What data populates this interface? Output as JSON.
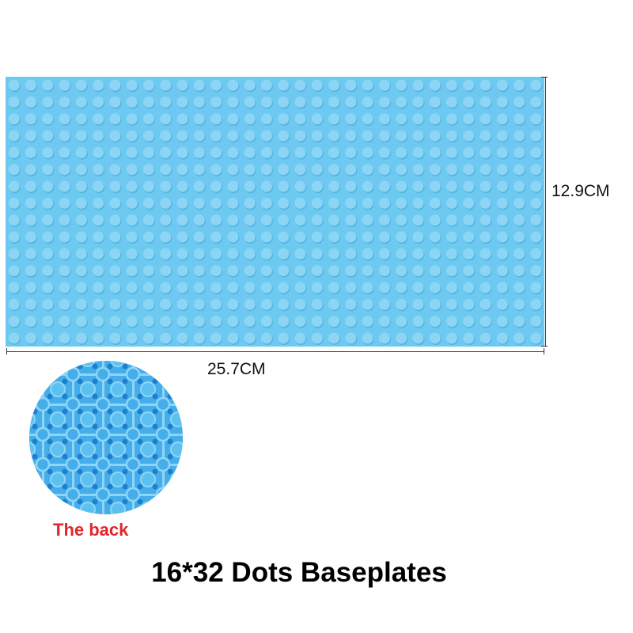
{
  "product": {
    "title": "16*32 Dots Baseplates",
    "width_label": "25.7CM",
    "height_label": "12.9CM",
    "back_label": "The back",
    "stud_rows": 16,
    "stud_columns": 32
  },
  "colors": {
    "plate": "#6ec9f0",
    "stud": "#8cd5f5",
    "back_plate": "#45aeea",
    "back_label": "#e0262b"
  }
}
